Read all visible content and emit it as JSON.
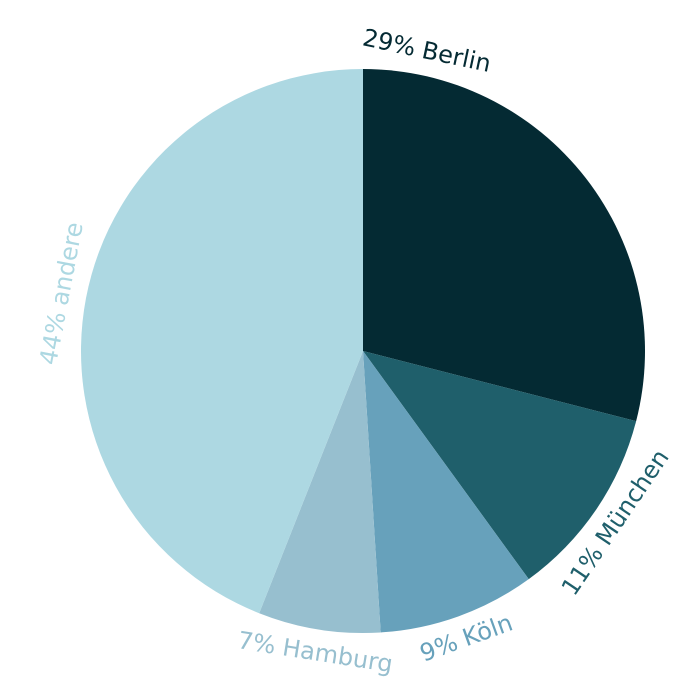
{
  "chart_data": {
    "type": "pie",
    "categories": [
      "Berlin",
      "München",
      "Köln",
      "Hamburg",
      "andere"
    ],
    "values": [
      29,
      11,
      9,
      7,
      44
    ],
    "value_labels": [
      "29%",
      "11%",
      "9%",
      "7%",
      "44%"
    ],
    "colors": [
      "#042a33",
      "#1f5f6b",
      "#67a1bb",
      "#97bfcf",
      "#add8e2"
    ]
  }
}
